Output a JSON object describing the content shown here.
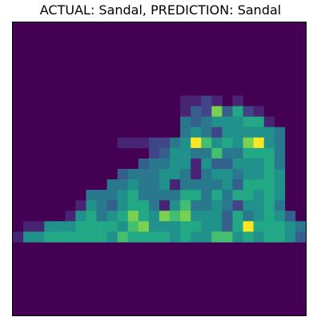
{
  "title": "ACTUAL: Sandal, PREDICTION: Sandal",
  "image": {
    "cols": 28,
    "rows": 28,
    "colormap": "viridis",
    "background_color": "#440154",
    "pixel_grid_note_levels": "values 0-9 map to viridis colormap from #440154 to #fde725",
    "pixel_rows": [
      "0000000000000000000000000000",
      "0000000000000000000000000000",
      "0000000000000000000000000000",
      "0000000000000000000000000000",
      "0000000000000000000000000000",
      "0000000000000000000000000000",
      "0000000000000000000000000000",
      "0000000000000000112101000000",
      "0000000000000000132836210000",
      "0000000000000000434555661000",
      "0000000000000000454255555400",
      "0000000000111224597565895400",
      "0000000000000235544744666400",
      "0000000000003445515335556400",
      "0000000000344455414554556500",
      "0000000004454451444453666500",
      "0000000444564444664646656500",
      "0000001543566415744542556400",
      "0000015645686587855536456530",
      "0115556666578555665536966654",
      "1556666665766665655775656653",
      "0000000000000000000000000000",
      "0000000000000000000000000000",
      "0000000000000000000000000000",
      "0000000000000000000000000000",
      "0000000000000000000000000000",
      "0000000000000000000000000000",
      "0000000000000000000000000000"
    ],
    "palette": [
      "#440154",
      "#482475",
      "#414487",
      "#355f8d",
      "#2a788e",
      "#21918c",
      "#22a884",
      "#44bf70",
      "#7ad151",
      "#fde725"
    ]
  }
}
